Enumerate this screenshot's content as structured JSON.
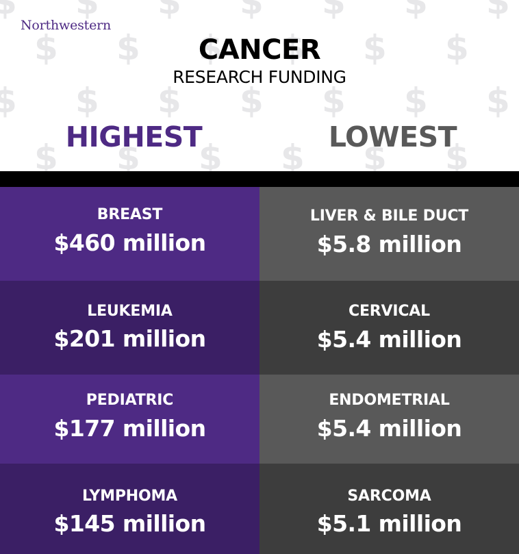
{
  "brand": {
    "logo_text": "Northwestern",
    "colors": {
      "purple": "#4e2a84",
      "gray": "#595959"
    }
  },
  "header": {
    "title": "CANCER",
    "subtitle": "RESEARCH FUNDING",
    "highest_label": "HIGHEST",
    "lowest_label": "LOWEST",
    "background_glyph": "$"
  },
  "highest": [
    {
      "name": "BREAST",
      "amount": "$460 million"
    },
    {
      "name": "LEUKEMIA",
      "amount": "$201 million"
    },
    {
      "name": "PEDIATRIC",
      "amount": "$177 million"
    },
    {
      "name": "LYMPHOMA",
      "amount": "$145 million"
    }
  ],
  "lowest": [
    {
      "name": "LIVER & BILE DUCT",
      "amount": "$5.8 million"
    },
    {
      "name": "CERVICAL",
      "amount": "$5.4 million"
    },
    {
      "name": "ENDOMETRIAL",
      "amount": "$5.4 million"
    },
    {
      "name": "SARCOMA",
      "amount": "$5.1 million"
    }
  ]
}
